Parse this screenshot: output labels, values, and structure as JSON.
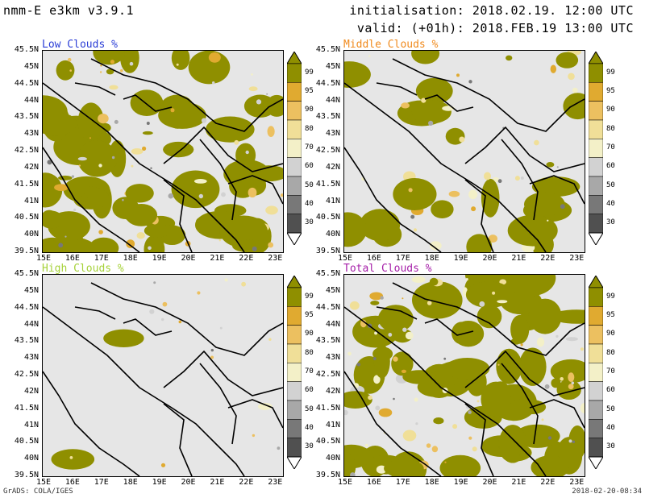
{
  "header": {
    "model": "nmm-E e3km v3.9.1",
    "init": "initialisation: 2018.02.19. 12:00 UTC",
    "valid": "valid: (+01h): 2018.FEB.19 13:00 UTC"
  },
  "panels": [
    {
      "title": "Low Clouds %",
      "title_color": "#2a3dd6",
      "coverage": 0.55
    },
    {
      "title": "Middle Clouds %",
      "title_color": "#f08a1c",
      "coverage": 0.28
    },
    {
      "title": "High Clouds %",
      "title_color": "#a6d23a",
      "coverage": 0.02
    },
    {
      "title": "Total Clouds %",
      "title_color": "#a51ea8",
      "coverage": 0.6
    }
  ],
  "lat_labels": [
    "45.5N",
    "45N",
    "44.5N",
    "44N",
    "43.5N",
    "43N",
    "42.5N",
    "42N",
    "41.5N",
    "41N",
    "40.5N",
    "40N",
    "39.5N"
  ],
  "lon_labels": [
    "15E",
    "16E",
    "17E",
    "18E",
    "19E",
    "20E",
    "21E",
    "22E",
    "23E"
  ],
  "colorbar": {
    "labels": [
      "99",
      "95",
      "90",
      "80",
      "70",
      "60",
      "50",
      "40",
      "30"
    ],
    "colors": [
      "#8f8f00",
      "#e0aa30",
      "#ecc060",
      "#f0df98",
      "#f3f0c8",
      "#d2d2d2",
      "#a8a8a8",
      "#787878",
      "#505050"
    ]
  },
  "footer": {
    "left": "GrADS: COLA/IGES",
    "right": "2018-02-20-08:34"
  }
}
